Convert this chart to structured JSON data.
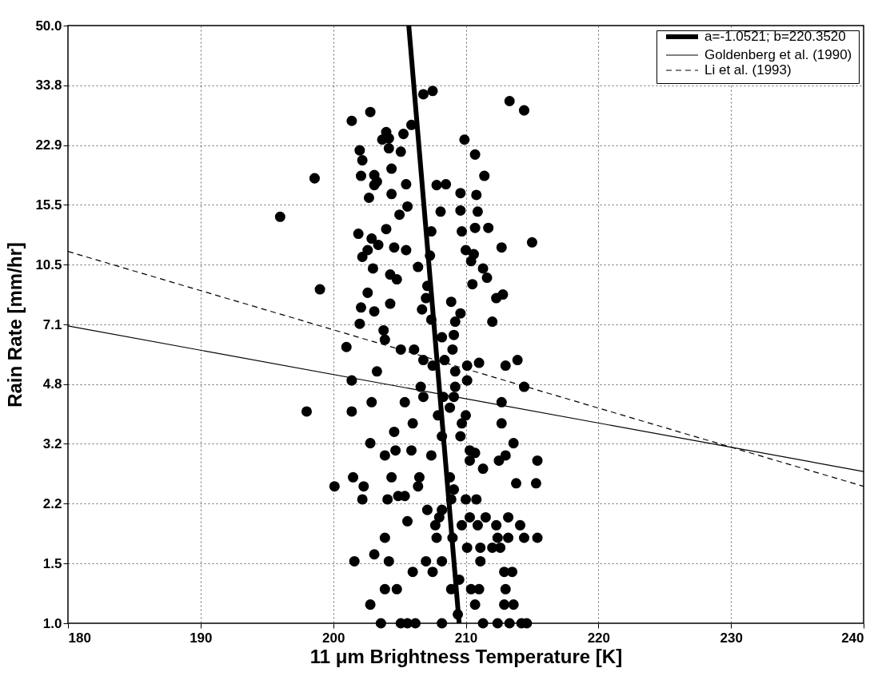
{
  "chart_data": {
    "type": "scatter",
    "xlabel": "11 μm Brightness Temperature [K]",
    "ylabel": "Rain Rate [mm/hr]",
    "xlim": [
      180,
      240
    ],
    "xticks": [
      180,
      190,
      200,
      210,
      220,
      230,
      240
    ],
    "ylim": [
      1,
      50
    ],
    "log": true,
    "yticks": [
      {
        "value": 1,
        "label": "1.0"
      },
      {
        "value": 1.479,
        "label": "1.5"
      },
      {
        "value": 2.187,
        "label": "2.2"
      },
      {
        "value": 3.237,
        "label": "3.2"
      },
      {
        "value": 4.787,
        "label": "4.8"
      },
      {
        "value": 7.071,
        "label": "7.1"
      },
      {
        "value": 10.46,
        "label": "10.5"
      },
      {
        "value": 15.47,
        "label": "15.5"
      },
      {
        "value": 22.87,
        "label": "22.9"
      },
      {
        "value": 33.81,
        "label": "33.8"
      },
      {
        "value": 50,
        "label": "50.0"
      }
    ],
    "grid": true,
    "legend": "top right",
    "series": [
      {
        "type": "scatter",
        "marker": "circle",
        "color": "#000000",
        "x": [
          206.8,
          207.5,
          213.3,
          214.4,
          201.4,
          202.8,
          205.9,
          204.0,
          203.7,
          204.2,
          205.3,
          204.2,
          205.1,
          209.9,
          202.0,
          202.2,
          210.7,
          204.4,
          202.1,
          203.1,
          203.3,
          203.1,
          205.5,
          202.7,
          204.4,
          211.4,
          207.8,
          208.5,
          209.6,
          210.8,
          205.6,
          205.0,
          208.1,
          209.6,
          210.9,
          198.6,
          201.9,
          204.0,
          202.9,
          203.4,
          202.6,
          202.2,
          204.6,
          205.5,
          207.4,
          209.7,
          210.7,
          211.7,
          212.7,
          215.0,
          210.0,
          210.6,
          210.4,
          207.3,
          203.0,
          206.4,
          204.3,
          204.8,
          211.3,
          211.6,
          199.0,
          202.6,
          207.1,
          210.5,
          212.8,
          212.3,
          202.1,
          203.1,
          204.3,
          207.0,
          206.7,
          208.9,
          209.6,
          209.2,
          207.4,
          212.0,
          202.0,
          203.8,
          208.2,
          209.1,
          201.0,
          203.9,
          205.1,
          206.1,
          209.0,
          206.8,
          208.4,
          210.1,
          211.0,
          213.0,
          213.9,
          203.3,
          207.5,
          209.2,
          210.1,
          209.2,
          201.4,
          214.4,
          206.6,
          206.8,
          202.9,
          205.4,
          208.3,
          209.1,
          208.8,
          212.7,
          198.0,
          201.4,
          207.9,
          210.0,
          206.0,
          209.7,
          212.7,
          204.6,
          209.6,
          208.2,
          202.8,
          213.6,
          203.9,
          204.7,
          205.9,
          207.4,
          210.3,
          210.7,
          210.3,
          212.5,
          213.0,
          211.3,
          215.4,
          201.5,
          204.4,
          206.5,
          208.8,
          200.1,
          202.3,
          206.4,
          209.1,
          213.8,
          215.3,
          202.2,
          204.1,
          204.9,
          205.4,
          208.9,
          210.0,
          210.8,
          207.1,
          208.2,
          205.6,
          208.0,
          210.3,
          211.5,
          213.2,
          207.7,
          209.7,
          210.9,
          212.3,
          214.1,
          203.9,
          207.8,
          209.0,
          212.4,
          213.2,
          214.4,
          215.4,
          210.1,
          211.1,
          212.0,
          212.6,
          203.1,
          201.6,
          204.2,
          207.0,
          207.5,
          208.2,
          211.1,
          206.0,
          212.9,
          213.5,
          203.9,
          204.8,
          208.9,
          209.5,
          210.4,
          211.0,
          213.0,
          202.8,
          210.7,
          212.9,
          213.6,
          209.4,
          203.6,
          205.1,
          205.6,
          206.2,
          208.2,
          211.3,
          212.4,
          213.3,
          214.2,
          214.6,
          196.0
        ],
        "values": [
          31.9,
          32.6,
          30.5,
          28.7,
          26.8,
          28.4,
          26.1,
          24.9,
          23.7,
          23.9,
          24.6,
          22.4,
          21.9,
          23.7,
          22.1,
          20.7,
          21.5,
          19.6,
          18.7,
          18.8,
          18.0,
          17.6,
          17.7,
          16.2,
          16.6,
          18.7,
          17.6,
          17.7,
          16.7,
          16.5,
          15.3,
          14.5,
          14.8,
          14.9,
          14.8,
          18.4,
          12.8,
          13.2,
          12.4,
          11.9,
          11.5,
          11.0,
          11.7,
          11.5,
          13.0,
          13.0,
          13.3,
          13.3,
          11.7,
          12.1,
          11.5,
          11.2,
          10.7,
          11.1,
          10.2,
          10.3,
          9.8,
          9.5,
          10.2,
          9.6,
          8.9,
          8.7,
          9.1,
          9.2,
          8.6,
          8.4,
          7.9,
          7.7,
          8.1,
          8.4,
          7.8,
          8.2,
          7.6,
          7.2,
          7.3,
          7.2,
          7.1,
          6.8,
          6.5,
          6.6,
          6.1,
          6.4,
          6.0,
          6.0,
          6.0,
          5.6,
          5.6,
          5.4,
          5.5,
          5.4,
          5.6,
          5.2,
          5.4,
          5.2,
          4.9,
          4.7,
          4.9,
          4.7,
          4.7,
          4.4,
          4.25,
          4.25,
          4.4,
          4.4,
          4.1,
          4.25,
          4.0,
          4.0,
          3.9,
          3.9,
          3.7,
          3.7,
          3.7,
          3.5,
          3.4,
          3.4,
          3.25,
          3.25,
          3.0,
          3.1,
          3.1,
          3.0,
          3.1,
          3.05,
          2.9,
          2.9,
          3.0,
          2.75,
          2.9,
          2.6,
          2.6,
          2.6,
          2.6,
          2.45,
          2.45,
          2.45,
          2.4,
          2.5,
          2.5,
          2.25,
          2.25,
          2.3,
          2.3,
          2.25,
          2.25,
          2.25,
          2.1,
          2.1,
          1.95,
          2.0,
          2.0,
          2.0,
          2.0,
          1.9,
          1.9,
          1.9,
          1.9,
          1.9,
          1.75,
          1.75,
          1.75,
          1.75,
          1.75,
          1.75,
          1.75,
          1.64,
          1.64,
          1.64,
          1.64,
          1.57,
          1.5,
          1.5,
          1.5,
          1.4,
          1.5,
          1.5,
          1.4,
          1.4,
          1.4,
          1.25,
          1.25,
          1.25,
          1.33,
          1.25,
          1.25,
          1.25,
          1.13,
          1.13,
          1.13,
          1.13,
          1.06,
          1.0,
          1.0,
          1.0,
          1.0,
          1.0,
          1.0,
          1.0,
          1.0,
          1.0,
          1.0,
          14.3
        ]
      },
      {
        "type": "line",
        "name": "a=-1.0521; b=220.3520",
        "color": "#000000",
        "line_style": "solid",
        "x": [
          205.7,
          209.5
        ],
        "values": [
          50,
          1.0
        ]
      },
      {
        "type": "line",
        "name": "Goldenberg et al. (1990)",
        "color": "#000000",
        "line_style": "solid",
        "x": [
          180,
          240
        ],
        "values": [
          7.0,
          2.7
        ]
      },
      {
        "type": "line",
        "name": "Li et al. (1993)",
        "color": "#000000",
        "line_style": "dashed",
        "x": [
          180,
          240
        ],
        "values": [
          11.4,
          2.45
        ]
      }
    ]
  }
}
